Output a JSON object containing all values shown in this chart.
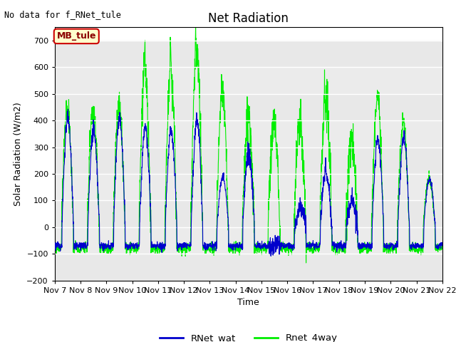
{
  "title": "Net Radiation",
  "xlabel": "Time",
  "ylabel": "Solar Radiation (W/m2)",
  "ylim": [
    -200,
    750
  ],
  "yticks": [
    -200,
    -100,
    0,
    100,
    200,
    300,
    400,
    500,
    600,
    700
  ],
  "annotation_text": "No data for f_RNet_tule",
  "legend_label1": "RNet_wat",
  "legend_label2": "Rnet_4way",
  "legend_color1": "#0000cc",
  "legend_color2": "#00ee00",
  "box_label": "MB_tule",
  "box_facecolor": "#ffffcc",
  "box_edgecolor": "#cc0000",
  "bg_light": "#e8e8e8",
  "bg_dark": "#d0d0d0",
  "bg_white": "#ffffff",
  "title_fontsize": 12,
  "label_fontsize": 9,
  "tick_fontsize": 8,
  "n_days": 15,
  "start_day": 7,
  "samples_per_day": 144
}
